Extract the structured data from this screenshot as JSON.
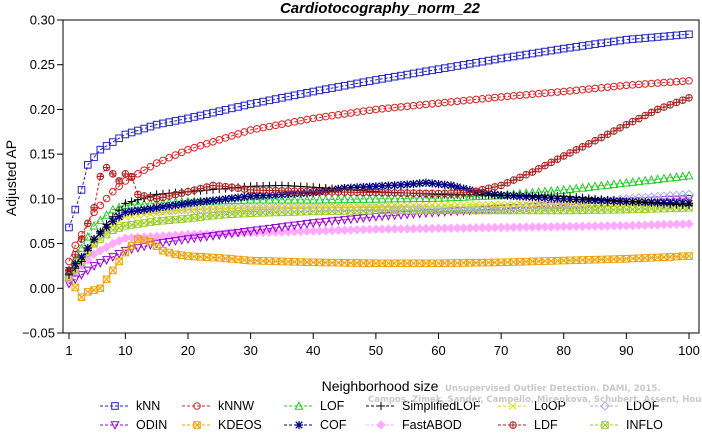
{
  "chart_data": {
    "type": "line",
    "title": "Cardiotocography_norm_22",
    "xlabel": "Neighborhood size",
    "ylabel": "Adjusted AP",
    "xlim": [
      1,
      100
    ],
    "ylim": [
      -0.05,
      0.3
    ],
    "x_ticks": [
      "1",
      "10",
      "20",
      "30",
      "40",
      "50",
      "60",
      "70",
      "80",
      "90",
      "100"
    ],
    "y_ticks": [
      "−0.05",
      "0.00",
      "0.05",
      "0.10",
      "0.15",
      "0.20",
      "0.25",
      "0.30"
    ],
    "grid": false,
    "legend_position": "bottom",
    "watermark": [
      "Unsupervised Outlier Detection. DAMI, 2015.",
      "Campos, Zimek, Sander, Campello, Micenkova, Schubert, Assent, Houle"
    ],
    "series": [
      {
        "name": "kNN",
        "color": "#2222cc",
        "marker": "square",
        "knots": [
          [
            1,
            0.068
          ],
          [
            2,
            0.088
          ],
          [
            3,
            0.11
          ],
          [
            4,
            0.138
          ],
          [
            6,
            0.155
          ],
          [
            10,
            0.172
          ],
          [
            15,
            0.183
          ],
          [
            20,
            0.19
          ],
          [
            30,
            0.206
          ],
          [
            40,
            0.22
          ],
          [
            50,
            0.233
          ],
          [
            60,
            0.245
          ],
          [
            70,
            0.257
          ],
          [
            80,
            0.268
          ],
          [
            90,
            0.278
          ],
          [
            100,
            0.284
          ]
        ]
      },
      {
        "name": "kNNW",
        "color": "#dd2222",
        "marker": "circle",
        "knots": [
          [
            1,
            0.03
          ],
          [
            2,
            0.048
          ],
          [
            3,
            0.06
          ],
          [
            5,
            0.085
          ],
          [
            8,
            0.108
          ],
          [
            10,
            0.12
          ],
          [
            15,
            0.14
          ],
          [
            20,
            0.155
          ],
          [
            30,
            0.177
          ],
          [
            40,
            0.19
          ],
          [
            50,
            0.2
          ],
          [
            60,
            0.207
          ],
          [
            70,
            0.214
          ],
          [
            80,
            0.22
          ],
          [
            90,
            0.227
          ],
          [
            100,
            0.232
          ]
        ]
      },
      {
        "name": "LOF",
        "color": "#22cc22",
        "marker": "triangle-up",
        "knots": [
          [
            1,
            0.02
          ],
          [
            3,
            0.045
          ],
          [
            5,
            0.07
          ],
          [
            8,
            0.088
          ],
          [
            10,
            0.093
          ],
          [
            20,
            0.097
          ],
          [
            30,
            0.099
          ],
          [
            40,
            0.099
          ],
          [
            50,
            0.1
          ],
          [
            60,
            0.101
          ],
          [
            70,
            0.104
          ],
          [
            80,
            0.11
          ],
          [
            90,
            0.118
          ],
          [
            100,
            0.126
          ]
        ]
      },
      {
        "name": "SimplifiedLOF",
        "color": "#000000",
        "marker": "plus",
        "knots": [
          [
            1,
            0.015
          ],
          [
            3,
            0.03
          ],
          [
            5,
            0.055
          ],
          [
            8,
            0.08
          ],
          [
            10,
            0.095
          ],
          [
            15,
            0.105
          ],
          [
            20,
            0.108
          ],
          [
            25,
            0.111
          ],
          [
            30,
            0.114
          ],
          [
            35,
            0.115
          ],
          [
            40,
            0.113
          ],
          [
            50,
            0.108
          ],
          [
            60,
            0.105
          ],
          [
            70,
            0.104
          ],
          [
            80,
            0.103
          ],
          [
            90,
            0.097
          ],
          [
            100,
            0.093
          ]
        ]
      },
      {
        "name": "LoOP",
        "color": "#dddd00",
        "marker": "x",
        "knots": [
          [
            1,
            0.012
          ],
          [
            3,
            0.03
          ],
          [
            5,
            0.048
          ],
          [
            8,
            0.07
          ],
          [
            10,
            0.08
          ],
          [
            20,
            0.088
          ],
          [
            30,
            0.09
          ],
          [
            40,
            0.091
          ],
          [
            50,
            0.092
          ],
          [
            60,
            0.093
          ],
          [
            70,
            0.094
          ],
          [
            80,
            0.095
          ],
          [
            90,
            0.095
          ],
          [
            100,
            0.096
          ]
        ]
      },
      {
        "name": "LDOF",
        "color": "#aaaaee",
        "marker": "diamond",
        "knots": [
          [
            1,
            0.012
          ],
          [
            3,
            0.028
          ],
          [
            5,
            0.05
          ],
          [
            8,
            0.075
          ],
          [
            10,
            0.085
          ],
          [
            20,
            0.088
          ],
          [
            30,
            0.09
          ],
          [
            40,
            0.09
          ],
          [
            50,
            0.09
          ],
          [
            60,
            0.089
          ],
          [
            70,
            0.09
          ],
          [
            80,
            0.094
          ],
          [
            90,
            0.1
          ],
          [
            100,
            0.105
          ]
        ]
      },
      {
        "name": "ODIN",
        "color": "#9900dd",
        "marker": "triangle-down",
        "knots": [
          [
            1,
            0.005
          ],
          [
            3,
            0.015
          ],
          [
            5,
            0.025
          ],
          [
            8,
            0.035
          ],
          [
            10,
            0.042
          ],
          [
            15,
            0.05
          ],
          [
            20,
            0.055
          ],
          [
            30,
            0.064
          ],
          [
            40,
            0.073
          ],
          [
            50,
            0.08
          ],
          [
            60,
            0.085
          ],
          [
            70,
            0.089
          ],
          [
            80,
            0.093
          ],
          [
            90,
            0.097
          ],
          [
            100,
            0.1
          ]
        ]
      },
      {
        "name": "KDEOS",
        "color": "#f0a000",
        "marker": "square-x",
        "knots": [
          [
            1,
            0.012
          ],
          [
            3,
            -0.01
          ],
          [
            4,
            -0.004
          ],
          [
            6,
            0.0
          ],
          [
            8,
            0.02
          ],
          [
            10,
            0.04
          ],
          [
            12,
            0.055
          ],
          [
            14,
            0.052
          ],
          [
            16,
            0.042
          ],
          [
            18,
            0.038
          ],
          [
            20,
            0.036
          ],
          [
            25,
            0.034
          ],
          [
            30,
            0.031
          ],
          [
            40,
            0.029
          ],
          [
            50,
            0.028
          ],
          [
            60,
            0.028
          ],
          [
            70,
            0.029
          ],
          [
            80,
            0.031
          ],
          [
            90,
            0.033
          ],
          [
            100,
            0.036
          ]
        ]
      },
      {
        "name": "COF",
        "color": "#000088",
        "marker": "asterisk",
        "knots": [
          [
            1,
            0.02
          ],
          [
            3,
            0.035
          ],
          [
            5,
            0.055
          ],
          [
            8,
            0.075
          ],
          [
            10,
            0.085
          ],
          [
            15,
            0.09
          ],
          [
            20,
            0.095
          ],
          [
            30,
            0.103
          ],
          [
            40,
            0.107
          ],
          [
            45,
            0.112
          ],
          [
            50,
            0.114
          ],
          [
            55,
            0.116
          ],
          [
            58,
            0.118
          ],
          [
            62,
            0.115
          ],
          [
            66,
            0.108
          ],
          [
            70,
            0.104
          ],
          [
            80,
            0.1
          ],
          [
            90,
            0.097
          ],
          [
            100,
            0.095
          ]
        ]
      },
      {
        "name": "FastABOD",
        "color": "#ffaaff",
        "marker": "diamond-filled",
        "knots": [
          [
            1,
            0.01
          ],
          [
            3,
            0.025
          ],
          [
            5,
            0.038
          ],
          [
            8,
            0.05
          ],
          [
            10,
            0.056
          ],
          [
            20,
            0.06
          ],
          [
            30,
            0.062
          ],
          [
            40,
            0.064
          ],
          [
            50,
            0.066
          ],
          [
            60,
            0.067
          ],
          [
            70,
            0.068
          ],
          [
            80,
            0.069
          ],
          [
            90,
            0.07
          ],
          [
            100,
            0.072
          ]
        ]
      },
      {
        "name": "LDF",
        "color": "#aa2222",
        "marker": "circle-plus",
        "knots": [
          [
            1,
            0.02
          ],
          [
            3,
            0.055
          ],
          [
            5,
            0.09
          ],
          [
            6,
            0.125
          ],
          [
            7,
            0.135
          ],
          [
            8,
            0.128
          ],
          [
            9,
            0.12
          ],
          [
            10,
            0.128
          ],
          [
            11,
            0.125
          ],
          [
            12,
            0.105
          ],
          [
            15,
            0.1
          ],
          [
            20,
            0.108
          ],
          [
            24,
            0.115
          ],
          [
            27,
            0.113
          ],
          [
            30,
            0.11
          ],
          [
            40,
            0.108
          ],
          [
            50,
            0.107
          ],
          [
            60,
            0.106
          ],
          [
            65,
            0.107
          ],
          [
            70,
            0.115
          ],
          [
            75,
            0.13
          ],
          [
            80,
            0.148
          ],
          [
            85,
            0.165
          ],
          [
            90,
            0.183
          ],
          [
            95,
            0.2
          ],
          [
            100,
            0.213
          ]
        ]
      },
      {
        "name": "INFLO",
        "color": "#99cc22",
        "marker": "square-x",
        "knots": [
          [
            1,
            0.012
          ],
          [
            3,
            0.03
          ],
          [
            5,
            0.05
          ],
          [
            8,
            0.065
          ],
          [
            10,
            0.07
          ],
          [
            15,
            0.075
          ],
          [
            20,
            0.078
          ],
          [
            25,
            0.082
          ],
          [
            30,
            0.084
          ],
          [
            40,
            0.086
          ],
          [
            50,
            0.087
          ],
          [
            60,
            0.087
          ],
          [
            70,
            0.087
          ],
          [
            80,
            0.087
          ],
          [
            90,
            0.088
          ],
          [
            100,
            0.09
          ]
        ]
      }
    ]
  }
}
